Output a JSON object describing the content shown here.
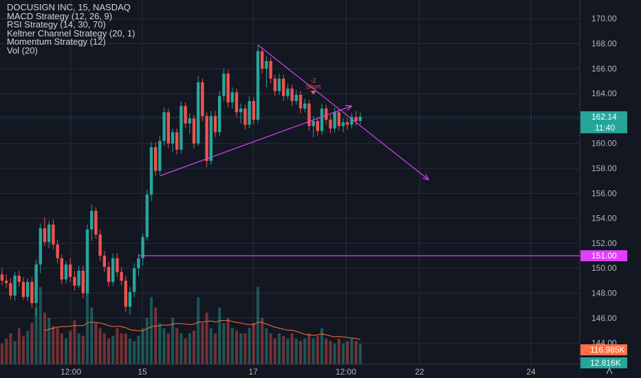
{
  "legend": {
    "title": "DOCUSIGN INC, 15, NASDAQ",
    "indicators": [
      "MACD Strategy (12, 26, 9)",
      "RSI Strategy (14, 30, 70)",
      "Keltner Channel Strategy (20, 1)",
      "Momentum Strategy (12)",
      "Vol (20)"
    ]
  },
  "colors": {
    "background": "#131722",
    "grid": "#2a2e39",
    "up": "#26a69a",
    "down": "#ef5350",
    "drawing": "#e040fb",
    "volume_ma": "#ff7043",
    "axis_text": "#b2b5be"
  },
  "chart_data": {
    "type": "candlestick",
    "symbol": "DOCUSIGN INC",
    "interval": "15",
    "exchange": "NASDAQ",
    "y_ticks": [
      144,
      146,
      148,
      150,
      152,
      154,
      156,
      158,
      160,
      162,
      164,
      166,
      168,
      170
    ],
    "y_tick_labels": [
      "144.00",
      "146.00",
      "148.00",
      "150.00",
      "152.00",
      "154.00",
      "156.00",
      "158.00",
      "160.00",
      "162.00",
      "164.00",
      "166.00",
      "168.00",
      "170.00"
    ],
    "x_tick_labels": [
      "12:00",
      "15",
      "17",
      "12:00",
      "22",
      "24"
    ],
    "price_range": [
      142.3,
      171.5
    ],
    "last_price": {
      "label": "162.14",
      "value": 162.14,
      "countdown": "11:40"
    },
    "level_line": {
      "label": "151.00",
      "value": 151.0
    },
    "volume_labels": {
      "ma": "116.985K",
      "last": "12.816K"
    },
    "signal": {
      "label": "-2",
      "sublabel": "Short"
    },
    "drawings": [
      {
        "name": "support-trendline",
        "from": {
          "bar": 37,
          "price": 157.4
        },
        "to": {
          "bar": 82,
          "price": 163.0
        }
      },
      {
        "name": "resistance-trendline",
        "from": {
          "bar": 60,
          "price": 167.9
        },
        "to": {
          "bar": 100,
          "price": 157.1
        }
      }
    ],
    "candles": [
      [
        149.5,
        150.0,
        148.6,
        149.0
      ],
      [
        149.0,
        149.5,
        148.4,
        148.8
      ],
      [
        148.8,
        149.2,
        147.5,
        147.8
      ],
      [
        147.8,
        149.7,
        147.4,
        149.4
      ],
      [
        149.4,
        149.8,
        148.5,
        148.9
      ],
      [
        148.9,
        149.3,
        147.5,
        147.7
      ],
      [
        147.7,
        149.2,
        147.4,
        148.9
      ],
      [
        148.9,
        149.3,
        146.8,
        147.2
      ],
      [
        147.2,
        150.7,
        146.2,
        150.3
      ],
      [
        150.3,
        153.6,
        149.6,
        153.2
      ],
      [
        153.2,
        154.1,
        151.8,
        152.1
      ],
      [
        152.1,
        153.8,
        151.6,
        153.5
      ],
      [
        153.5,
        153.9,
        151.5,
        151.9
      ],
      [
        151.9,
        152.3,
        150.4,
        150.8
      ],
      [
        150.8,
        151.1,
        148.7,
        149.1
      ],
      [
        149.1,
        150.6,
        148.8,
        150.3
      ],
      [
        150.3,
        150.8,
        148.9,
        149.3
      ],
      [
        149.3,
        149.8,
        148.2,
        148.6
      ],
      [
        148.6,
        150.2,
        148.4,
        149.8
      ],
      [
        149.8,
        150.2,
        147.6,
        148.0
      ],
      [
        148.0,
        153.5,
        147.8,
        153.1
      ],
      [
        153.1,
        155.1,
        152.2,
        154.6
      ],
      [
        154.6,
        154.9,
        152.4,
        152.7
      ],
      [
        152.7,
        153.1,
        150.6,
        151.0
      ],
      [
        151.0,
        151.4,
        149.7,
        150.1
      ],
      [
        150.1,
        150.5,
        148.5,
        148.9
      ],
      [
        148.9,
        151.2,
        148.6,
        150.8
      ],
      [
        150.8,
        151.2,
        149.3,
        149.7
      ],
      [
        149.7,
        150.1,
        148.6,
        149.0
      ],
      [
        149.0,
        149.4,
        146.5,
        146.9
      ],
      [
        146.9,
        148.5,
        146.3,
        148.1
      ],
      [
        148.1,
        150.4,
        147.7,
        150.0
      ],
      [
        150.0,
        151.2,
        149.4,
        150.8
      ],
      [
        150.8,
        152.8,
        150.2,
        152.5
      ],
      [
        152.5,
        156.3,
        152.2,
        155.9
      ],
      [
        155.9,
        160.1,
        155.4,
        159.7
      ],
      [
        159.7,
        160.1,
        157.4,
        157.8
      ],
      [
        157.8,
        160.6,
        157.5,
        160.2
      ],
      [
        160.2,
        162.9,
        159.8,
        162.5
      ],
      [
        162.5,
        162.8,
        159.6,
        160.0
      ],
      [
        160.0,
        161.2,
        159.3,
        160.9
      ],
      [
        160.9,
        161.2,
        159.1,
        159.5
      ],
      [
        159.5,
        163.4,
        159.2,
        163.0
      ],
      [
        163.0,
        163.3,
        161.2,
        161.6
      ],
      [
        161.6,
        162.4,
        160.8,
        162.0
      ],
      [
        162.0,
        162.3,
        159.6,
        160.0
      ],
      [
        160.0,
        165.4,
        159.8,
        164.9
      ],
      [
        164.9,
        165.2,
        161.8,
        162.2
      ],
      [
        162.2,
        162.5,
        158.1,
        158.6
      ],
      [
        158.6,
        162.6,
        158.3,
        162.2
      ],
      [
        162.2,
        162.6,
        160.5,
        160.9
      ],
      [
        160.9,
        164.2,
        160.6,
        163.8
      ],
      [
        163.8,
        166.0,
        163.4,
        165.6
      ],
      [
        165.6,
        165.9,
        162.9,
        163.3
      ],
      [
        163.3,
        164.5,
        162.8,
        164.1
      ],
      [
        164.1,
        164.4,
        162.1,
        162.5
      ],
      [
        162.5,
        163.2,
        161.6,
        162.8
      ],
      [
        162.8,
        163.1,
        161.1,
        161.5
      ],
      [
        161.5,
        163.8,
        161.2,
        163.4
      ],
      [
        163.4,
        163.7,
        161.5,
        161.9
      ],
      [
        161.9,
        167.9,
        161.6,
        167.4
      ],
      [
        167.4,
        167.7,
        165.6,
        166.0
      ],
      [
        166.0,
        167.0,
        164.5,
        166.6
      ],
      [
        166.6,
        166.9,
        164.8,
        165.2
      ],
      [
        165.2,
        165.5,
        163.8,
        164.2
      ],
      [
        164.2,
        165.6,
        163.9,
        165.2
      ],
      [
        165.2,
        165.5,
        163.4,
        163.8
      ],
      [
        163.8,
        164.8,
        163.5,
        164.4
      ],
      [
        164.4,
        164.7,
        163.0,
        163.4
      ],
      [
        163.4,
        164.3,
        163.1,
        163.9
      ],
      [
        163.9,
        164.2,
        162.4,
        162.8
      ],
      [
        162.8,
        163.6,
        162.5,
        163.2
      ],
      [
        163.2,
        163.5,
        161.0,
        161.4
      ],
      [
        161.4,
        162.2,
        160.5,
        161.8
      ],
      [
        161.8,
        162.1,
        160.6,
        161.0
      ],
      [
        161.0,
        163.2,
        160.7,
        162.8
      ],
      [
        162.8,
        163.1,
        161.5,
        161.9
      ],
      [
        161.9,
        162.3,
        160.8,
        161.2
      ],
      [
        161.2,
        162.9,
        160.9,
        162.5
      ],
      [
        162.5,
        162.8,
        161.0,
        161.4
      ],
      [
        161.4,
        162.0,
        160.9,
        161.7
      ],
      [
        161.7,
        162.0,
        161.1,
        161.5
      ],
      [
        161.5,
        162.4,
        161.2,
        162.1
      ],
      [
        162.1,
        162.6,
        161.4,
        161.8
      ],
      [
        161.8,
        162.5,
        161.5,
        162.14
      ]
    ],
    "volume": [
      8,
      10,
      12,
      9,
      14,
      11,
      13,
      16,
      22,
      30,
      20,
      18,
      15,
      14,
      12,
      10,
      13,
      17,
      12,
      11,
      30,
      22,
      16,
      14,
      12,
      10,
      11,
      14,
      12,
      12,
      10,
      9,
      11,
      14,
      18,
      26,
      22,
      16,
      14,
      12,
      18,
      14,
      12,
      10,
      12,
      13,
      26,
      16,
      20,
      14,
      12,
      22,
      16,
      18,
      14,
      13,
      12,
      12,
      14,
      16,
      30,
      18,
      14,
      12,
      10,
      12,
      11,
      10,
      12,
      10,
      9,
      10,
      12,
      10,
      11,
      14,
      10,
      9,
      8,
      10,
      8,
      9,
      10,
      9,
      8
    ],
    "volume_ma": [
      null,
      null,
      null,
      null,
      null,
      null,
      null,
      null,
      null,
      null,
      13,
      13.6,
      14,
      14.4,
      14.6,
      14.6,
      14.8,
      15,
      15,
      15,
      16,
      16.4,
      16.2,
      16,
      15.6,
      15,
      14.6,
      14.8,
      14.6,
      14.2,
      13.4,
      13.2,
      13,
      13,
      13.8,
      14.6,
      14.8,
      15,
      15.2,
      15.2,
      15.6,
      15.8,
      15.8,
      15.6,
      15.4,
      15.6,
      16.4,
      16.4,
      16.6,
      16.8,
      16.4,
      16.8,
      17,
      17,
      16.6,
      16.2,
      16,
      15.6,
      15.4,
      15.4,
      16.4,
      16.2,
      15.6,
      15,
      14.4,
      14,
      13.6,
      13.2,
      13.2,
      12.8,
      12.2,
      11.6,
      11.4,
      11.2,
      11.4,
      11.8,
      11.4,
      11,
      10.6,
      10.8,
      10.6,
      10.4,
      10.2,
      10,
      9.6
    ]
  }
}
